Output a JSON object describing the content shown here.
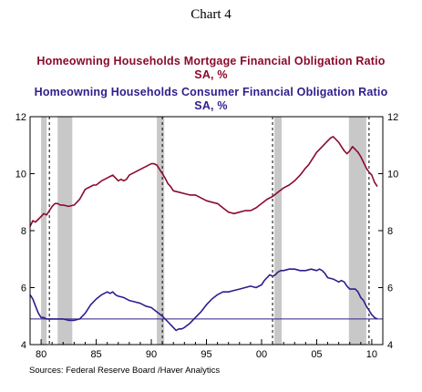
{
  "header": {
    "chart_label": "Chart 4"
  },
  "chart_data": {
    "type": "line",
    "series": [
      {
        "name": "Homeowning Households Mortgage Financial Obligation Ratio",
        "unit_line": "SA, %",
        "color": "#8B0A2E",
        "x": [
          1979.0,
          1979.25,
          1979.5,
          1979.75,
          1980.0,
          1980.25,
          1980.5,
          1980.75,
          1981.0,
          1981.25,
          1981.5,
          1981.75,
          1982.0,
          1982.5,
          1983.0,
          1983.5,
          1984.0,
          1984.25,
          1984.5,
          1984.75,
          1985.0,
          1985.5,
          1986.0,
          1986.25,
          1986.5,
          1986.75,
          1987.0,
          1987.25,
          1987.5,
          1987.75,
          1988.0,
          1988.5,
          1989.0,
          1989.5,
          1990.0,
          1990.25,
          1990.5,
          1990.75,
          1991.0,
          1991.25,
          1991.5,
          1991.75,
          1992.0,
          1992.5,
          1993.0,
          1993.5,
          1994.0,
          1994.5,
          1995.0,
          1995.5,
          1996.0,
          1996.5,
          1997.0,
          1997.5,
          1998.0,
          1998.5,
          1999.0,
          1999.5,
          2000.0,
          2000.5,
          2001.0,
          2001.5,
          2002.0,
          2002.5,
          2003.0,
          2003.5,
          2004.0,
          2004.25,
          2004.5,
          2004.75,
          2005.0,
          2005.25,
          2005.5,
          2005.75,
          2006.0,
          2006.25,
          2006.5,
          2006.75,
          2007.0,
          2007.25,
          2007.5,
          2007.75,
          2008.0,
          2008.25,
          2008.5,
          2008.75,
          2009.0,
          2009.25,
          2009.5,
          2009.75,
          2010.0,
          2010.25,
          2010.5
        ],
        "values": [
          8.15,
          8.35,
          8.3,
          8.4,
          8.5,
          8.6,
          8.55,
          8.7,
          8.85,
          8.95,
          8.95,
          8.9,
          8.9,
          8.85,
          8.9,
          9.1,
          9.45,
          9.5,
          9.55,
          9.6,
          9.6,
          9.75,
          9.85,
          9.9,
          9.95,
          9.85,
          9.75,
          9.8,
          9.75,
          9.8,
          9.95,
          10.05,
          10.15,
          10.25,
          10.35,
          10.35,
          10.3,
          10.15,
          10.0,
          9.85,
          9.65,
          9.55,
          9.4,
          9.35,
          9.3,
          9.25,
          9.25,
          9.15,
          9.05,
          9.0,
          8.95,
          8.8,
          8.65,
          8.6,
          8.65,
          8.7,
          8.7,
          8.8,
          8.95,
          9.1,
          9.2,
          9.35,
          9.5,
          9.6,
          9.75,
          9.95,
          10.2,
          10.3,
          10.45,
          10.6,
          10.75,
          10.85,
          10.95,
          11.05,
          11.15,
          11.25,
          11.3,
          11.2,
          11.1,
          10.95,
          10.8,
          10.7,
          10.8,
          10.95,
          10.85,
          10.75,
          10.6,
          10.4,
          10.2,
          10.05,
          9.95,
          9.7,
          9.55
        ]
      },
      {
        "name": "Homeowning Households Consumer Financial Obligation Ratio",
        "unit_line": "SA, %",
        "color": "#2E1E8C",
        "x": [
          1979.0,
          1979.25,
          1979.5,
          1979.75,
          1980.0,
          1980.25,
          1980.5,
          1980.75,
          1981.0,
          1981.5,
          1982.0,
          1982.5,
          1983.0,
          1983.5,
          1984.0,
          1984.5,
          1985.0,
          1985.5,
          1986.0,
          1986.25,
          1986.5,
          1986.75,
          1987.0,
          1987.5,
          1988.0,
          1988.5,
          1989.0,
          1989.5,
          1990.0,
          1990.5,
          1991.0,
          1991.5,
          1992.0,
          1992.25,
          1992.5,
          1992.75,
          1993.0,
          1993.5,
          1994.0,
          1994.5,
          1995.0,
          1995.5,
          1996.0,
          1996.5,
          1997.0,
          1997.5,
          1998.0,
          1998.5,
          1999.0,
          1999.5,
          2000.0,
          2000.25,
          2000.5,
          2000.75,
          2001.0,
          2001.25,
          2001.5,
          2001.75,
          2002.0,
          2002.5,
          2003.0,
          2003.5,
          2004.0,
          2004.5,
          2005.0,
          2005.25,
          2005.5,
          2005.75,
          2006.0,
          2006.5,
          2007.0,
          2007.25,
          2007.5,
          2007.75,
          2008.0,
          2008.25,
          2008.5,
          2008.75,
          2009.0,
          2009.25,
          2009.5,
          2009.75,
          2010.0,
          2010.25,
          2010.5
        ],
        "values": [
          5.75,
          5.6,
          5.35,
          5.1,
          4.95,
          4.95,
          4.9,
          4.9,
          4.9,
          4.9,
          4.9,
          4.85,
          4.85,
          4.9,
          5.1,
          5.4,
          5.6,
          5.75,
          5.85,
          5.8,
          5.85,
          5.75,
          5.7,
          5.65,
          5.55,
          5.5,
          5.45,
          5.35,
          5.3,
          5.15,
          5.0,
          4.8,
          4.6,
          4.5,
          4.55,
          4.55,
          4.6,
          4.75,
          4.95,
          5.15,
          5.4,
          5.6,
          5.75,
          5.85,
          5.85,
          5.9,
          5.95,
          6.0,
          6.05,
          6.0,
          6.1,
          6.25,
          6.35,
          6.45,
          6.4,
          6.45,
          6.55,
          6.6,
          6.6,
          6.65,
          6.65,
          6.6,
          6.6,
          6.65,
          6.6,
          6.65,
          6.6,
          6.5,
          6.35,
          6.3,
          6.2,
          6.25,
          6.2,
          6.05,
          5.95,
          5.95,
          5.95,
          5.85,
          5.65,
          5.55,
          5.35,
          5.2,
          5.05,
          4.95,
          4.9
        ]
      }
    ],
    "reference_line": {
      "value": 4.9,
      "color": "#2E1E8C"
    },
    "recessions": [
      [
        1980.0,
        1980.5
      ],
      [
        1981.5,
        1982.83
      ],
      [
        1990.5,
        1991.17
      ],
      [
        2001.17,
        2001.83
      ],
      [
        2007.92,
        2009.5
      ]
    ],
    "vertical_dashed_lines_at": [
      1980.75,
      1991.0,
      2001.0,
      2009.75
    ],
    "xlim": [
      1979,
      2011
    ],
    "ylim": [
      4,
      12
    ],
    "y_ticks": [
      4,
      6,
      8,
      10,
      12
    ],
    "y_tick_labels": [
      "4",
      "6",
      "8",
      "10",
      "12"
    ],
    "x_tick_positions": [
      1980,
      1985,
      1990,
      1995,
      2000,
      2005,
      2010
    ],
    "x_tick_labels": [
      "80",
      "85",
      "90",
      "95",
      "00",
      "05",
      "10"
    ],
    "grid": "dashed vertical lines at recession troughs",
    "dual_axis": "left and right axes share scale"
  },
  "footer": {
    "source": "Sources:  Federal Reserve Board /Haver Analytics"
  }
}
